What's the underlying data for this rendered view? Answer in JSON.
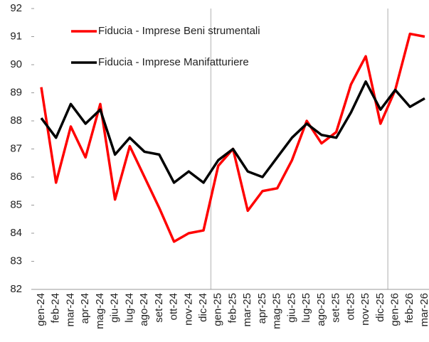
{
  "chart_data": {
    "type": "line",
    "categories": [
      "gen-24",
      "feb-24",
      "mar-24",
      "apr-24",
      "mag-24",
      "giu-24",
      "lug-24",
      "ago-24",
      "set-24",
      "ott-24",
      "nov-24",
      "dic-24",
      "gen-25",
      "feb-25",
      "mar-25",
      "apr-25",
      "mag-25",
      "giu-25",
      "lug-25",
      "ago-25",
      "set-25",
      "ott-25",
      "nov-25",
      "dic-25",
      "gen-26",
      "feb-26",
      "mar-26"
    ],
    "series": [
      {
        "name": "Fiducia - Imprese Beni strumentali",
        "color": "#ff0000",
        "values": [
          89.2,
          85.8,
          87.8,
          86.7,
          88.6,
          85.2,
          87.1,
          86.0,
          84.9,
          83.7,
          84.0,
          84.1,
          86.4,
          87.0,
          84.8,
          85.5,
          85.6,
          86.6,
          88.0,
          87.2,
          87.6,
          89.3,
          90.3,
          87.9,
          89.1,
          91.1,
          91.0
        ]
      },
      {
        "name": "Fiducia - Imprese Manifatturiere",
        "color": "#000000",
        "values": [
          88.1,
          87.4,
          88.6,
          87.9,
          88.4,
          86.8,
          87.4,
          86.9,
          86.8,
          85.8,
          86.2,
          85.8,
          86.6,
          87.0,
          86.2,
          86.0,
          86.7,
          87.4,
          87.9,
          87.5,
          87.4,
          88.3,
          89.4,
          88.4,
          89.1,
          88.5,
          88.8
        ]
      }
    ],
    "ylim": [
      82,
      92
    ],
    "yticks": [
      82,
      83,
      84,
      85,
      86,
      87,
      88,
      89,
      90,
      91,
      92
    ]
  }
}
